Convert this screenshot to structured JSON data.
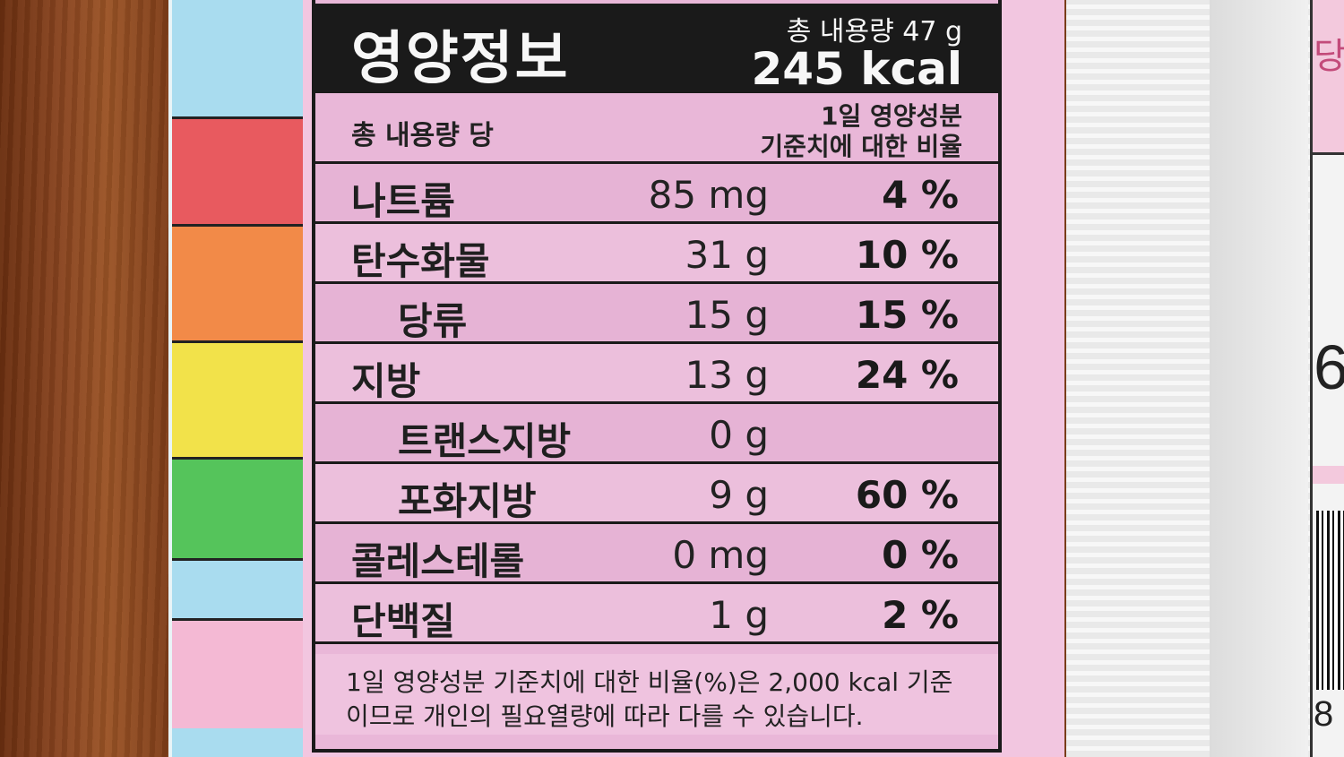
{
  "label": {
    "title": "영양정보",
    "total_amount": "총 내용량 47 g",
    "calories": "245 kcal",
    "per_basis": "총 내용량 당",
    "dv_header_line1": "1일 영양성분",
    "dv_header_line2": "기준치에 대한 비율",
    "rows": [
      {
        "name": "나트륨",
        "amount": "85 mg",
        "percent": "4 %"
      },
      {
        "name": "탄수화물",
        "amount": "31 g",
        "percent": "10 %"
      },
      {
        "name": "당류",
        "amount": "15 g",
        "percent": "15 %"
      },
      {
        "name": "지방",
        "amount": "13 g",
        "percent": "24 %"
      },
      {
        "name": "트랜스지방",
        "amount": "0 g",
        "percent": ""
      },
      {
        "name": "포화지방",
        "amount": "9 g",
        "percent": "60 %"
      },
      {
        "name": "콜레스테롤",
        "amount": "0 mg",
        "percent": "0 %"
      },
      {
        "name": "단백질",
        "amount": "1 g",
        "percent": "2 %"
      }
    ],
    "footnote_line1": "1일 영양성분 기준치에 대한 비율(%)은 2,000 kcal 기준",
    "footnote_line2": "이므로 개인의 필요열량에 따라 다를 수 있습니다."
  },
  "background": {
    "side_text_top": "당",
    "side_digit": "6",
    "side_digit_bottom": "8"
  },
  "colors": {
    "label_pink": "#e9b7d8",
    "header_black": "#1a1a1a",
    "box_blue": "#a9dcef"
  }
}
